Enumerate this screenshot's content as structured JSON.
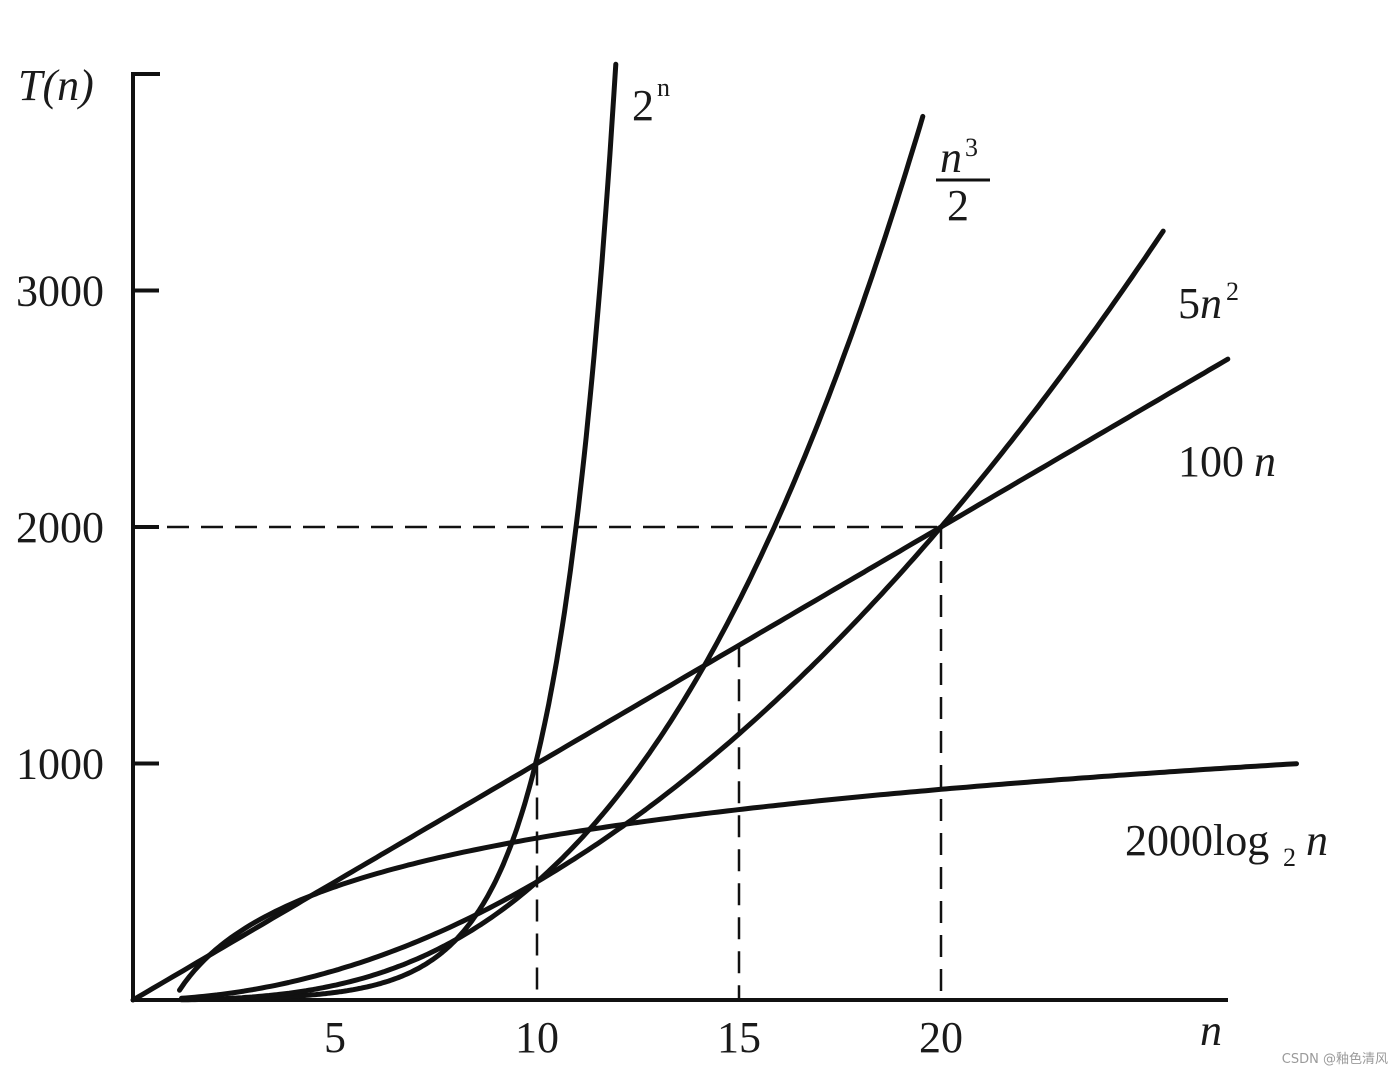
{
  "chart_data": {
    "type": "line",
    "title": "",
    "xlabel": "n",
    "ylabel": "T(n)",
    "xlim": [
      0,
      27
    ],
    "ylim": [
      0,
      3900
    ],
    "x_ticks": [
      5,
      10,
      15,
      20
    ],
    "x_tick_labels": [
      "5",
      "10",
      "15",
      "20"
    ],
    "y_ticks": [
      1000,
      2000,
      3000
    ],
    "y_tick_labels": [
      "1000",
      "2000",
      "3000"
    ],
    "grid": false,
    "legend": "labels at curve ends",
    "series": [
      {
        "name": "2^n",
        "label": {
          "base": "2",
          "sup": "n"
        },
        "formula": "2^n",
        "x": [
          1,
          4,
          6,
          8,
          9,
          10,
          10.5,
          11,
          11.5,
          11.9
        ],
        "values": [
          2,
          16,
          64,
          256,
          512,
          1024,
          1448,
          2048,
          2896,
          3822
        ]
      },
      {
        "name": "n^3/2",
        "label": {
          "num": "n",
          "sup": "3",
          "den": "2"
        },
        "formula": "n^3/2",
        "x": [
          1,
          4,
          8,
          10,
          12,
          14,
          16,
          18,
          19.5
        ],
        "values": [
          0.5,
          32,
          256,
          500,
          864,
          1372,
          2048,
          2916,
          3707
        ]
      },
      {
        "name": "5n^2",
        "label": {
          "coef": "5",
          "var": "n",
          "sup": "2"
        },
        "formula": "5n^2",
        "x": [
          1,
          5,
          10,
          15,
          20,
          22,
          25.5
        ],
        "values": [
          5,
          125,
          500,
          1125,
          2000,
          2420,
          3251
        ]
      },
      {
        "name": "100n",
        "label": {
          "coef": "100",
          "var": "n"
        },
        "formula": "100n",
        "x": [
          0,
          5,
          10,
          15,
          20,
          25,
          27
        ],
        "values": [
          0,
          500,
          1000,
          1500,
          2000,
          2500,
          2700
        ]
      },
      {
        "name": "2000log2n",
        "label": {
          "coef": "2000log",
          "sub": "2",
          "var": "n"
        },
        "formula": "2000*log2(n)/(log2(n)... scaled)",
        "x": [
          1,
          2,
          4,
          6,
          8,
          10,
          15,
          20,
          27
        ],
        "values": [
          0,
          330,
          560,
          650,
          700,
          740,
          820,
          890,
          980
        ]
      }
    ],
    "reference_lines": [
      {
        "orientation": "horizontal",
        "y": 2000,
        "x_range": [
          0,
          20
        ]
      },
      {
        "orientation": "vertical",
        "x": 10,
        "y_range": [
          0,
          1000
        ]
      },
      {
        "orientation": "vertical",
        "x": 15,
        "y_range": [
          0,
          1500
        ]
      },
      {
        "orientation": "vertical",
        "x": 20,
        "y_range": [
          0,
          2000
        ]
      }
    ]
  },
  "watermark": "CSDN @釉色清风"
}
